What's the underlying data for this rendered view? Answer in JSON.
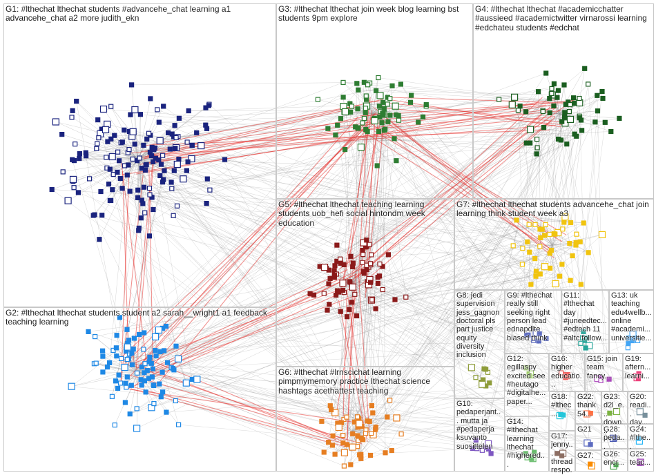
{
  "groups": [
    {
      "id": "G1",
      "label": "G1: #lthechat lthechat students #advancehe_chat learning a1 advancehe_chat a2 more judith_ekn",
      "color": "#1a237e"
    },
    {
      "id": "G2",
      "label": "G2: #lthechat lthechat students student a2 sarah__wright1 a1 feedback teaching learning",
      "color": "#1e88e5"
    },
    {
      "id": "G3",
      "label": "G3: #lthechat lthechat join week blog learning bst students 9pm explore",
      "color": "#2e7d32"
    },
    {
      "id": "G4",
      "label": "G4: #lthechat lthechat #academicchatter #aussieed #academictwitter virnarossi learning #edchateu students #edchat",
      "color": "#1b5e20"
    },
    {
      "id": "G5",
      "label": "G5: #lthechat lthechat teaching learning students uob_hefi social hintondm week education",
      "color": "#8b1a1a"
    },
    {
      "id": "G6",
      "label": "G6: #lthechat #lrnscichat learning pimpmymemory practice lthechat science hashtags acethattest teaching",
      "color": "#e67e22"
    },
    {
      "id": "G7",
      "label": "G7: #lthechat lthechat students advancehe_chat join learning think student week a3",
      "color": "#f1c40f"
    },
    {
      "id": "G8",
      "label": "G8: jedi supervision jess_gagnon doctoral pls part justice equity diversity inclusion",
      "color": "#8e9c3a"
    },
    {
      "id": "G9",
      "label": "G9: #lthechat really still seeking right person lead ednapdlte biased think",
      "color": "#5c6bc0"
    },
    {
      "id": "G10",
      "label": "G10: pedaperjant... mutta ja #pedaperja ksuvanto suosittelen",
      "color": "#7e57c2"
    },
    {
      "id": "G11",
      "label": "G11: #lthechat day #juneedtec... #edtech 11 #altc follow...",
      "color": "#26a69a"
    },
    {
      "id": "G12",
      "label": "G12: egillaspy excited see #heutago #digitalhe... paper...",
      "color": "#9ccc65"
    },
    {
      "id": "G13",
      "label": "G13: uk teaching edu4wellb... online #academi... universitie...",
      "color": "#42a5f5"
    },
    {
      "id": "G14",
      "label": "G14: #lthechat learning lthechat #highered...",
      "color": "#66bb6a"
    },
    {
      "id": "G15",
      "label": "G15: join team fancy...",
      "color": "#ab47bc"
    },
    {
      "id": "G16",
      "label": "G16: higher educatio...",
      "color": "#ef5350"
    },
    {
      "id": "G17",
      "label": "G17: jenny... thread respo...",
      "color": "#8d6e63"
    },
    {
      "id": "G18",
      "label": "G18: #lthec...",
      "color": "#26c6da"
    },
    {
      "id": "G19",
      "label": "G19: aftern... learni...",
      "color": "#ec407a"
    },
    {
      "id": "G20",
      "label": "G20: readi... day...",
      "color": "#78909c"
    },
    {
      "id": "G21",
      "label": "G21",
      "color": "#5c6bc0"
    },
    {
      "id": "G22",
      "label": "G22: thank 54...",
      "color": "#ff7043"
    },
    {
      "id": "G23",
      "label": "G23: d2l_e... down...",
      "color": "#7cb342"
    },
    {
      "id": "G24",
      "label": "G24: #lthe...",
      "color": "#29b6f6"
    },
    {
      "id": "G25",
      "label": "G25: teac...",
      "color": "#8e24aa"
    },
    {
      "id": "G26",
      "label": "G26: encr...",
      "color": "#43a047"
    },
    {
      "id": "G27",
      "label": "G27:",
      "color": "#fb8c00"
    },
    {
      "id": "G28",
      "label": "G28: peda...",
      "color": "#3949ab"
    }
  ]
}
